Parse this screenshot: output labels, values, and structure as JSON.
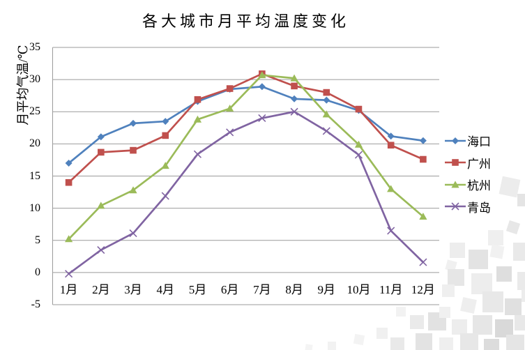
{
  "title": "各大城市月平均温度变化",
  "y_axis_title": "月平均气温/℃",
  "chart_data": {
    "type": "line",
    "title": "各大城市月平均温度变化",
    "ylabel": "月平均气温/℃",
    "xlabel": "",
    "categories": [
      "1月",
      "2月",
      "3月",
      "4月",
      "5月",
      "6月",
      "7月",
      "8月",
      "9月",
      "10月",
      "11月",
      "12月"
    ],
    "series": [
      {
        "name": "海口",
        "marker": "diamond",
        "color": "#4F81BD",
        "values": [
          17.0,
          21.1,
          23.2,
          23.5,
          26.6,
          28.5,
          28.9,
          27.0,
          26.8,
          25.2,
          21.2,
          20.5
        ]
      },
      {
        "name": "广州",
        "marker": "square",
        "color": "#C0504D",
        "values": [
          14.0,
          18.7,
          19.0,
          21.3,
          26.9,
          28.6,
          30.9,
          29.0,
          28.0,
          25.4,
          19.8,
          17.6
        ]
      },
      {
        "name": "杭州",
        "marker": "triangle",
        "color": "#9BBB59",
        "values": [
          5.2,
          10.4,
          12.8,
          16.6,
          23.8,
          25.5,
          30.7,
          30.2,
          24.6,
          19.9,
          13.0,
          8.7
        ]
      },
      {
        "name": "青岛",
        "marker": "x",
        "color": "#8064A2",
        "values": [
          -0.2,
          3.5,
          6.1,
          11.9,
          18.4,
          21.8,
          24.0,
          25.0,
          22.0,
          18.3,
          6.5,
          1.6
        ]
      }
    ],
    "ylim": [
      -5,
      35
    ],
    "yticks": [
      35,
      30,
      25,
      20,
      15,
      10,
      5,
      0,
      -5
    ],
    "grid": true,
    "legend_position": "right",
    "gridline_color": "#9B9B9B",
    "text_color": "#000000"
  }
}
